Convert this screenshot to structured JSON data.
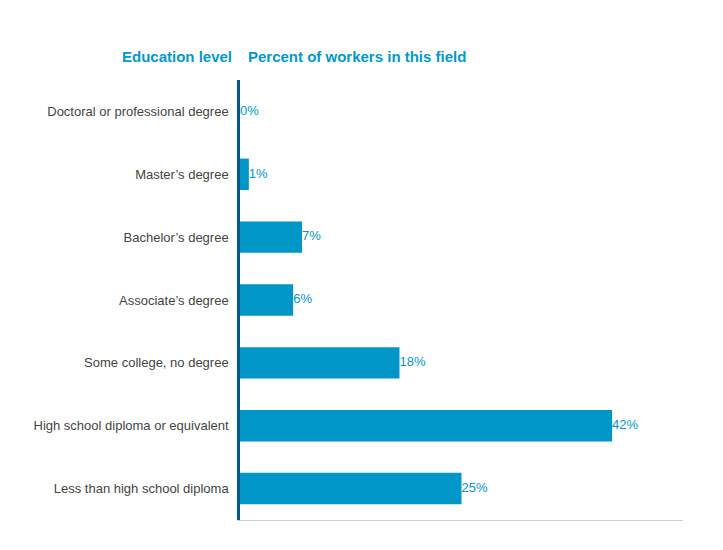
{
  "chart_data": {
    "type": "bar",
    "orientation": "horizontal",
    "categories": [
      "Doctoral or professional degree",
      "Master’s degree",
      "Bachelor’s degree",
      "Associate’s degree",
      "Some college, no degree",
      "High school diploma or equivalent",
      "Less than high school diploma"
    ],
    "values": [
      0,
      1,
      7,
      6,
      18,
      42,
      25
    ],
    "value_labels": [
      "0%",
      "1%",
      "7%",
      "6%",
      "18%",
      "42%",
      "25%"
    ],
    "data_labels": true,
    "color": "#0096c8",
    "ylabel": "Education level",
    "xlabel": "Percent of workers in this field",
    "xlim": [
      0,
      50
    ],
    "xticks": [],
    "tick_labels": "y",
    "grid": false
  }
}
